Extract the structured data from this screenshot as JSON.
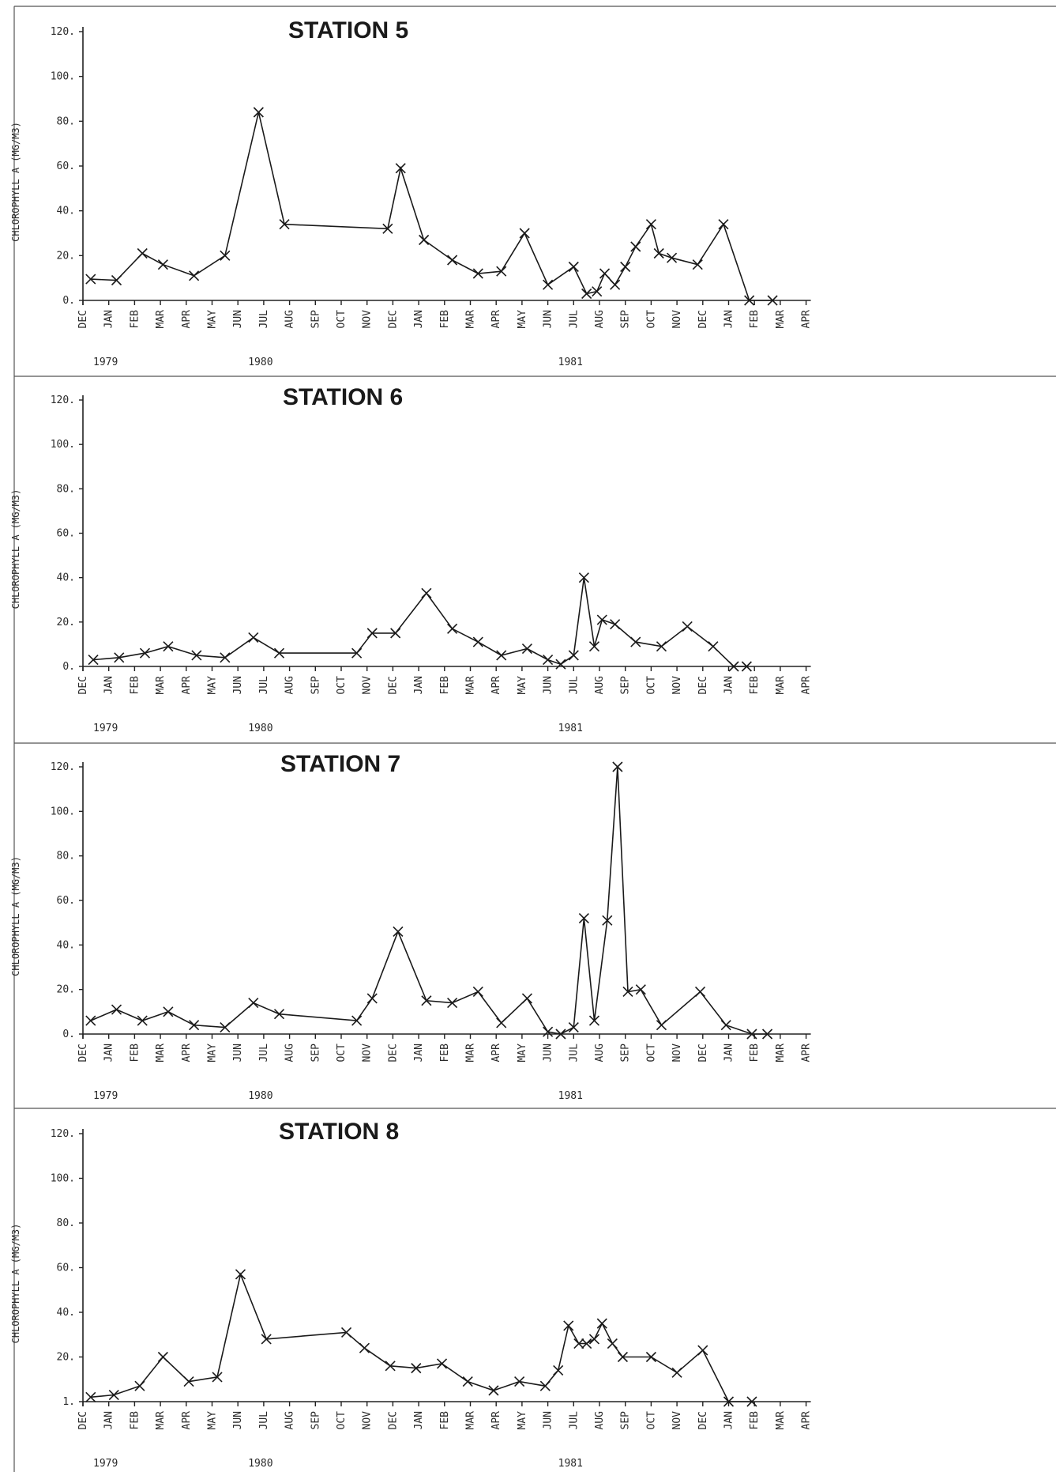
{
  "months": [
    "DEC",
    "JAN",
    "FEB",
    "MAR",
    "APR",
    "MAY",
    "JUN",
    "JUL",
    "AUG",
    "SEP",
    "OCT",
    "NOV",
    "DEC",
    "JAN",
    "FEB",
    "MAR",
    "APR",
    "MAY",
    "JUN",
    "JUL",
    "AUG",
    "SEP",
    "OCT",
    "NOV",
    "DEC",
    "JAN",
    "FEB",
    "MAR",
    "APR"
  ],
  "years": [
    {
      "label": "1979",
      "month_index": 1
    },
    {
      "label": "1980",
      "month_index": 7
    },
    {
      "label": "1981",
      "month_index": 19
    }
  ],
  "chart_data": [
    {
      "type": "line",
      "title": "STATION 5",
      "ylabel": "CHLOROPHYLL A (MG/M3)",
      "yticks": [
        "0.",
        "20.",
        "40.",
        "60.",
        "80.",
        "100.",
        "120."
      ],
      "ylim": [
        0,
        120
      ],
      "xlim": [
        0,
        28
      ],
      "x_unit": "months since DEC 1978",
      "series": [
        {
          "x": [
            0.3,
            1.3,
            2.3,
            3.1,
            4.3,
            5.5,
            6.8,
            7.8,
            11.8,
            12.3,
            13.2,
            14.3,
            15.3,
            16.2,
            17.1,
            18.0,
            19.0,
            19.5,
            19.9,
            20.2,
            20.6,
            21.0,
            21.4,
            22.0,
            22.3,
            22.8,
            23.8,
            24.8,
            25.8,
            26.7
          ],
          "values": [
            9.5,
            9,
            21,
            16,
            11,
            20,
            84,
            34,
            32,
            59,
            27,
            18,
            12,
            13,
            30,
            7,
            15,
            3,
            4,
            12,
            7,
            15,
            24,
            34,
            21,
            19,
            16,
            34,
            0,
            0
          ]
        }
      ]
    },
    {
      "type": "line",
      "title": "STATION 6",
      "ylabel": "CHLOROPHYLL A (MG/M3)",
      "yticks": [
        "0.",
        "20.",
        "40.",
        "60.",
        "80.",
        "100.",
        "120."
      ],
      "ylim": [
        0,
        120
      ],
      "xlim": [
        0,
        28
      ],
      "x_unit": "months since DEC 1978",
      "series": [
        {
          "x": [
            0.4,
            1.4,
            2.4,
            3.3,
            4.4,
            5.5,
            6.6,
            7.6,
            10.6,
            11.2,
            12.1,
            13.3,
            14.3,
            15.3,
            16.2,
            17.2,
            18.0,
            18.5,
            19.0,
            19.4,
            19.8,
            20.1,
            20.6,
            21.4,
            22.4,
            23.4,
            24.4,
            25.2,
            25.7
          ],
          "values": [
            3,
            4,
            6,
            9,
            5,
            4,
            13,
            6,
            6,
            15,
            15,
            33,
            17,
            11,
            5,
            8,
            3,
            1,
            5,
            40,
            9,
            21,
            19,
            11,
            9,
            18,
            9,
            0,
            0
          ]
        }
      ]
    },
    {
      "type": "line",
      "title": "STATION 7",
      "ylabel": "CHLOROPHYLL A (MG/M3)",
      "yticks": [
        "0.",
        "20.",
        "40.",
        "60.",
        "80.",
        "100.",
        "120."
      ],
      "ylim": [
        0,
        120
      ],
      "xlim": [
        0,
        28
      ],
      "x_unit": "months since DEC 1978",
      "series": [
        {
          "x": [
            0.3,
            1.3,
            2.3,
            3.3,
            4.3,
            5.5,
            6.6,
            7.6,
            10.6,
            11.2,
            12.2,
            13.3,
            14.3,
            15.3,
            16.2,
            17.2,
            18.0,
            18.5,
            19.0,
            19.4,
            19.8,
            20.3,
            20.7,
            21.1,
            21.6,
            22.4,
            23.9,
            24.9,
            25.9,
            26.5
          ],
          "values": [
            6,
            11,
            6,
            10,
            4,
            3,
            14,
            9,
            6,
            16,
            46,
            15,
            14,
            19,
            5,
            16,
            1,
            0,
            3,
            52,
            6,
            51,
            120,
            19,
            20,
            4,
            19,
            4,
            0,
            0
          ]
        }
      ]
    },
    {
      "type": "line",
      "title": "STATION 8",
      "ylabel": "CHLOROPHYLL A (MG/M3)",
      "yticks": [
        "1.",
        "20.",
        "40.",
        "60.",
        "80.",
        "100.",
        "120."
      ],
      "ylim": [
        0,
        120
      ],
      "xlim": [
        0,
        28
      ],
      "x_unit": "months since DEC 1978",
      "series": [
        {
          "x": [
            0.3,
            1.2,
            2.2,
            3.1,
            4.1,
            5.2,
            6.1,
            7.1,
            10.2,
            10.9,
            11.9,
            12.9,
            13.9,
            14.9,
            15.9,
            16.9,
            17.9,
            18.4,
            18.8,
            19.2,
            19.5,
            19.8,
            20.1,
            20.5,
            20.9,
            22.0,
            23.0,
            24.0,
            25.0,
            25.9
          ],
          "values": [
            2,
            3,
            7,
            20,
            9,
            11,
            57,
            28,
            31,
            24,
            16,
            15,
            17,
            9,
            5,
            9,
            7,
            14,
            34,
            26,
            26,
            28,
            35,
            26,
            20,
            20,
            13,
            23,
            0,
            0
          ]
        }
      ]
    }
  ]
}
